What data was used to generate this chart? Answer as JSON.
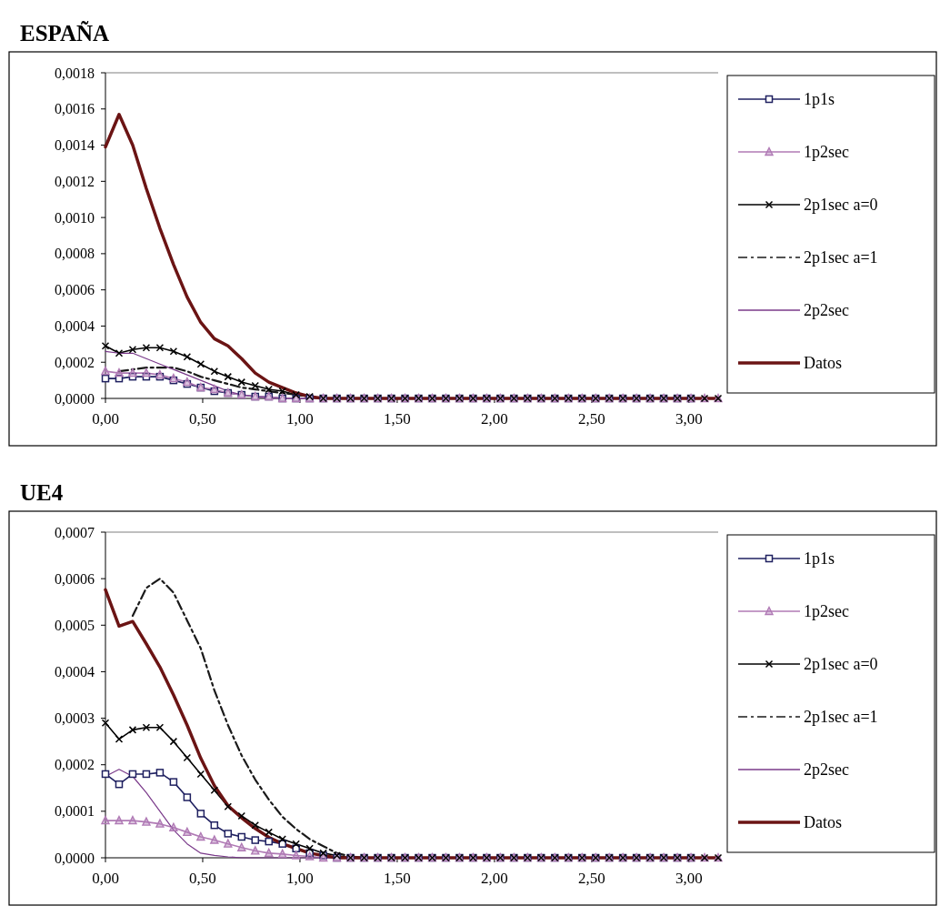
{
  "chart_data": [
    {
      "type": "line",
      "title": "ESPAÑA",
      "legend": "right",
      "grid": false,
      "x": [
        0,
        0.07,
        0.14,
        0.21,
        0.28,
        0.35,
        0.42,
        0.49,
        0.56,
        0.63,
        0.7,
        0.77,
        0.84,
        0.91,
        0.98,
        1.05,
        1.12,
        1.19,
        1.26,
        1.33,
        1.4,
        1.47,
        1.54,
        1.61,
        1.68,
        1.75,
        1.82,
        1.89,
        1.96,
        2.03,
        2.1,
        2.17,
        2.24,
        2.31,
        2.38,
        2.45,
        2.52,
        2.59,
        2.66,
        2.73,
        2.8,
        2.87,
        2.94,
        3.01,
        3.08,
        3.15
      ],
      "xlim": [
        0,
        3.15
      ],
      "xticks": [
        {
          "value": 0,
          "label": "0,00"
        },
        {
          "value": 0.5,
          "label": "0,50"
        },
        {
          "value": 1,
          "label": "1,00"
        },
        {
          "value": 1.5,
          "label": "1,50"
        },
        {
          "value": 2,
          "label": "2,00"
        },
        {
          "value": 2.5,
          "label": "2,50"
        },
        {
          "value": 3,
          "label": "3,00"
        }
      ],
      "ylim": [
        0,
        0.0018
      ],
      "yticks": [
        {
          "value": 0,
          "label": "0,0000"
        },
        {
          "value": 0.0002,
          "label": "0,0002"
        },
        {
          "value": 0.0004,
          "label": "0,0004"
        },
        {
          "value": 0.0006,
          "label": "0,0006"
        },
        {
          "value": 0.0008,
          "label": "0,0008"
        },
        {
          "value": 0.001,
          "label": "0,0010"
        },
        {
          "value": 0.0012,
          "label": "0,0012"
        },
        {
          "value": 0.0014,
          "label": "0,0014"
        },
        {
          "value": 0.0016,
          "label": "0,0016"
        },
        {
          "value": 0.0018,
          "label": "0,0018"
        }
      ],
      "series": [
        {
          "name": "1p1s",
          "color": "#1f2060",
          "marker": "square",
          "line_style": "solid",
          "values": [
            0.00011,
            0.00011,
            0.00012,
            0.00012,
            0.00012,
            0.0001,
            8e-05,
            6e-05,
            4e-05,
            3e-05,
            2e-05,
            1e-05,
            1e-05,
            0,
            0,
            0,
            0,
            0,
            0,
            0,
            0,
            0,
            0,
            0,
            0,
            0,
            0,
            0,
            0,
            0,
            0,
            0,
            0,
            0,
            0,
            0,
            0,
            0,
            0,
            0,
            0,
            0,
            0,
            0,
            null,
            null
          ]
        },
        {
          "name": "1p2sec",
          "color": "#b07ab5",
          "marker": "triangle",
          "line_style": "solid",
          "values": [
            0.00015,
            0.00014,
            0.00014,
            0.00014,
            0.00013,
            0.00011,
            9e-05,
            6e-05,
            5e-05,
            3e-05,
            2e-05,
            1e-05,
            1e-05,
            0,
            0,
            0,
            0,
            0,
            0,
            0,
            0,
            0,
            0,
            0,
            0,
            0,
            0,
            0,
            0,
            0,
            0,
            0,
            0,
            0,
            0,
            0,
            0,
            0,
            0,
            0,
            0,
            0,
            0,
            0,
            0,
            0
          ]
        },
        {
          "name": "2p1sec a=0",
          "color": "#000000",
          "marker": "cross",
          "line_style": "solid",
          "values": [
            0.00029,
            0.00025,
            0.00027,
            0.00028,
            0.00028,
            0.00026,
            0.00023,
            0.00019,
            0.00015,
            0.00012,
            9e-05,
            7e-05,
            5e-05,
            4e-05,
            2e-05,
            1e-05,
            0,
            0,
            0,
            0,
            0,
            0,
            0,
            0,
            0,
            0,
            0,
            0,
            0,
            0,
            0,
            0,
            0,
            0,
            0,
            0,
            0,
            0,
            0,
            0,
            0,
            0,
            0,
            0,
            0,
            0
          ]
        },
        {
          "name": "2p1sec a=1",
          "color": "#1a1a1a",
          "marker": "none",
          "line_style": "dashed",
          "values": [
            null,
            0.00015,
            0.00016,
            0.00017,
            0.00017,
            0.00017,
            0.00015,
            0.00012,
            0.0001,
            8e-05,
            6e-05,
            5e-05,
            4e-05,
            3e-05,
            2e-05,
            1e-05,
            0,
            0,
            0,
            0,
            0,
            0,
            0,
            0,
            0,
            0,
            0,
            0,
            0,
            0,
            0,
            0,
            0,
            0,
            0,
            0,
            0,
            0,
            0,
            0,
            0,
            0,
            0,
            0,
            0,
            0
          ]
        },
        {
          "name": "2p2sec",
          "color": "#7a3a8a",
          "marker": "none",
          "line_style": "solid",
          "values": [
            0.00026,
            0.00025,
            0.00025,
            0.00022,
            0.00019,
            0.00016,
            0.00013,
            0.0001,
            7e-05,
            4e-05,
            2e-05,
            1e-05,
            0,
            0,
            0,
            0,
            0,
            0,
            0,
            0,
            0,
            0,
            0,
            0,
            0,
            0,
            0,
            0,
            0,
            0,
            0,
            0,
            0,
            0,
            0,
            0,
            0,
            0,
            0,
            0,
            0,
            0,
            0,
            0,
            0,
            0
          ]
        },
        {
          "name": "Datos",
          "color": "#6b1414",
          "marker": "none",
          "line_style": "solid",
          "values": [
            0.00139,
            0.00157,
            0.0014,
            0.00116,
            0.00094,
            0.00074,
            0.00056,
            0.00042,
            0.00033,
            0.00029,
            0.00022,
            0.00014,
            9e-05,
            6e-05,
            3e-05,
            1e-05,
            0,
            0,
            0,
            0,
            0,
            0,
            0,
            0,
            0,
            0,
            0,
            0,
            0,
            0,
            0,
            0,
            0,
            0,
            0,
            0,
            0,
            0,
            0,
            0,
            0,
            0,
            0,
            0,
            0,
            0
          ]
        }
      ]
    },
    {
      "type": "line",
      "title": "UE4",
      "legend": "right",
      "grid": false,
      "x": [
        0,
        0.07,
        0.14,
        0.21,
        0.28,
        0.35,
        0.42,
        0.49,
        0.56,
        0.63,
        0.7,
        0.77,
        0.84,
        0.91,
        0.98,
        1.05,
        1.12,
        1.19,
        1.26,
        1.33,
        1.4,
        1.47,
        1.54,
        1.61,
        1.68,
        1.75,
        1.82,
        1.89,
        1.96,
        2.03,
        2.1,
        2.17,
        2.24,
        2.31,
        2.38,
        2.45,
        2.52,
        2.59,
        2.66,
        2.73,
        2.8,
        2.87,
        2.94,
        3.01,
        3.08,
        3.15
      ],
      "xlim": [
        0,
        3.15
      ],
      "xticks": [
        {
          "value": 0,
          "label": "0,00"
        },
        {
          "value": 0.5,
          "label": "0,50"
        },
        {
          "value": 1,
          "label": "1,00"
        },
        {
          "value": 1.5,
          "label": "1,50"
        },
        {
          "value": 2,
          "label": "2,00"
        },
        {
          "value": 2.5,
          "label": "2,50"
        },
        {
          "value": 3,
          "label": "3,00"
        }
      ],
      "ylim": [
        0,
        0.0007
      ],
      "yticks": [
        {
          "value": 0,
          "label": "0,0000"
        },
        {
          "value": 0.0001,
          "label": "0,0001"
        },
        {
          "value": 0.0002,
          "label": "0,0002"
        },
        {
          "value": 0.0003,
          "label": "0,0003"
        },
        {
          "value": 0.0004,
          "label": "0,0004"
        },
        {
          "value": 0.0005,
          "label": "0,0005"
        },
        {
          "value": 0.0006,
          "label": "0,0006"
        },
        {
          "value": 0.0007,
          "label": "0,0007"
        }
      ],
      "series": [
        {
          "name": "1p1s",
          "color": "#1f2060",
          "marker": "square",
          "line_style": "solid",
          "values": [
            0.00018,
            0.000158,
            0.00018,
            0.00018,
            0.000183,
            0.000163,
            0.00013,
            9.5e-05,
            7e-05,
            5.2e-05,
            4.5e-05,
            3.8e-05,
            3.5e-05,
            3e-05,
            2e-05,
            1e-05,
            5e-06,
            0,
            0,
            0,
            0,
            0,
            0,
            0,
            0,
            0,
            0,
            0,
            0,
            0,
            0,
            0,
            0,
            0,
            0,
            0,
            0,
            0,
            0,
            0,
            0,
            0,
            0,
            0,
            null,
            null
          ]
        },
        {
          "name": "1p2sec",
          "color": "#b07ab5",
          "marker": "triangle",
          "line_style": "solid",
          "values": [
            8e-05,
            8e-05,
            8e-05,
            7.7e-05,
            7.3e-05,
            6.5e-05,
            5.5e-05,
            4.5e-05,
            3.8e-05,
            3e-05,
            2.2e-05,
            1.5e-05,
            1e-05,
            8e-06,
            5e-06,
            3e-06,
            0,
            0,
            0,
            0,
            0,
            0,
            0,
            0,
            0,
            0,
            0,
            0,
            0,
            0,
            0,
            0,
            0,
            0,
            0,
            0,
            0,
            0,
            0,
            0,
            0,
            0,
            0,
            0,
            0,
            0
          ]
        },
        {
          "name": "2p1sec a=0",
          "color": "#000000",
          "marker": "cross",
          "line_style": "solid",
          "values": [
            0.00029,
            0.000255,
            0.000275,
            0.00028,
            0.00028,
            0.00025,
            0.000215,
            0.00018,
            0.000145,
            0.00011,
            9e-05,
            7e-05,
            5.5e-05,
            4e-05,
            3e-05,
            2e-05,
            1e-05,
            5e-06,
            0,
            0,
            0,
            0,
            0,
            0,
            0,
            0,
            0,
            0,
            0,
            0,
            0,
            0,
            0,
            0,
            0,
            0,
            0,
            0,
            0,
            0,
            0,
            0,
            0,
            0,
            0,
            0
          ]
        },
        {
          "name": "2p1sec a=1",
          "color": "#1a1a1a",
          "marker": "none",
          "line_style": "dashed",
          "values": [
            null,
            null,
            0.00052,
            0.00058,
            0.0006,
            0.00057,
            0.00051,
            0.00045,
            0.00036,
            0.000285,
            0.00022,
            0.000168,
            0.000125,
            8.8e-05,
            6.2e-05,
            4e-05,
            2.5e-05,
            1e-05,
            3e-06,
            0,
            0,
            0,
            0,
            0,
            0,
            0,
            0,
            0,
            0,
            0,
            0,
            0,
            0,
            0,
            0,
            0,
            0,
            0,
            0,
            0,
            0,
            0,
            0,
            0,
            0,
            0
          ]
        },
        {
          "name": "2p2sec",
          "color": "#7a3a8a",
          "marker": "none",
          "line_style": "solid",
          "values": [
            0.000175,
            0.00019,
            0.000175,
            0.00014,
            0.0001,
            6e-05,
            3e-05,
            1e-05,
            5e-06,
            2e-06,
            0,
            0,
            0,
            0,
            0,
            0,
            0,
            0,
            0,
            0,
            0,
            0,
            0,
            0,
            0,
            0,
            0,
            0,
            0,
            0,
            0,
            0,
            0,
            0,
            0,
            0,
            0,
            0,
            0,
            0,
            0,
            0,
            0,
            0,
            0,
            0
          ]
        },
        {
          "name": "Datos",
          "color": "#6b1414",
          "marker": "none",
          "line_style": "solid",
          "values": [
            0.000576,
            0.000498,
            0.000508,
            0.00046,
            0.00041,
            0.00035,
            0.000285,
            0.000214,
            0.000155,
            0.000112,
            8.6e-05,
            6.3e-05,
            4.4e-05,
            3e-05,
            2e-05,
            1e-05,
            5e-06,
            0,
            0,
            0,
            0,
            0,
            0,
            0,
            0,
            0,
            0,
            0,
            0,
            0,
            0,
            0,
            0,
            0,
            0,
            0,
            0,
            0,
            0,
            0,
            0,
            0,
            0,
            0,
            0,
            0
          ]
        }
      ]
    }
  ]
}
